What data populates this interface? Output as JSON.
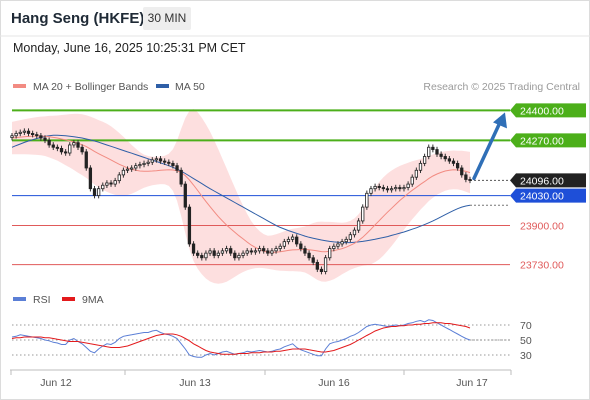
{
  "header": {
    "title": "Hang Seng (HKFE)",
    "timeframe": "30 MIN",
    "datetime": "Monday, June 16, 2025 10:25:31 PM CET"
  },
  "legend": {
    "ma20_label": "MA 20 + Bollinger Bands",
    "ma50_label": "MA 50",
    "ma20_color": "#f28b82",
    "ma50_color": "#2f5fa7",
    "credit": "Research © 2025 Trading Central"
  },
  "rsi_legend": {
    "rsi_label": "RSI",
    "ma9_label": "9MA",
    "rsi_color": "#5b7fd6",
    "ma9_color": "#e31a1c"
  },
  "chart_data": [
    {
      "type": "candlestick",
      "title": "",
      "ylim": [
        23620,
        24480
      ],
      "x_ticks": [
        "Jun 12",
        "Jun 13",
        "Jun 16",
        "Jun 17"
      ],
      "levels": [
        {
          "value": 24400,
          "label": "24400.00",
          "kind": "resistance",
          "color": "#4caf1a"
        },
        {
          "value": 24270,
          "label": "24270.00",
          "kind": "resistance",
          "color": "#4caf1a"
        },
        {
          "value": 24096,
          "label": "24096.00",
          "kind": "last-price",
          "color": "#222222"
        },
        {
          "value": 24030,
          "label": "24030.00",
          "kind": "pivot",
          "color": "#1e4fd8"
        },
        {
          "value": 23900,
          "label": "23900.00",
          "kind": "support",
          "color": "#e05a5a"
        },
        {
          "value": 23730,
          "label": "23730.00",
          "kind": "support",
          "color": "#e05a5a"
        }
      ],
      "closes": [
        24290,
        24300,
        24305,
        24310,
        24300,
        24295,
        24290,
        24280,
        24270,
        24250,
        24240,
        24235,
        24220,
        24215,
        24250,
        24260,
        24240,
        24220,
        24150,
        24060,
        24030,
        24060,
        24075,
        24085,
        24080,
        24095,
        24120,
        24140,
        24145,
        24150,
        24160,
        24165,
        24170,
        24175,
        24185,
        24190,
        24180,
        24175,
        24170,
        24160,
        24140,
        24080,
        23980,
        23820,
        23780,
        23770,
        23760,
        23780,
        23790,
        23770,
        23780,
        23790,
        23800,
        23780,
        23760,
        23770,
        23780,
        23790,
        23785,
        23790,
        23800,
        23790,
        23780,
        23790,
        23800,
        23810,
        23830,
        23840,
        23850,
        23820,
        23800,
        23780,
        23760,
        23740,
        23710,
        23700,
        23760,
        23800,
        23810,
        23820,
        23830,
        23840,
        23860,
        23880,
        23920,
        23980,
        24040,
        24060,
        24070,
        24065,
        24060,
        24055,
        24060,
        24065,
        24060,
        24065,
        24080,
        24110,
        24140,
        24170,
        24200,
        24240,
        24230,
        24210,
        24200,
        24190,
        24180,
        24170,
        24150,
        24120,
        24100,
        24096
      ],
      "ma20": [
        24280,
        24282,
        24284,
        24286,
        24287,
        24288,
        24289,
        24289,
        24288,
        24286,
        24283,
        24280,
        24276,
        24272,
        24268,
        24263,
        24257,
        24251,
        24243,
        24233,
        24222,
        24212,
        24203,
        24194,
        24185,
        24175,
        24166,
        24158,
        24150,
        24144,
        24140,
        24137,
        24136,
        24136,
        24137,
        24138,
        24140,
        24141,
        24142,
        24141,
        24138,
        24130,
        24117,
        24098,
        24076,
        24052,
        24028,
        24005,
        23982,
        23960,
        23939,
        23920,
        23902,
        23886,
        23871,
        23856,
        23842,
        23828,
        23815,
        23805,
        23796,
        23789,
        23784,
        23783,
        23784,
        23786,
        23789,
        23792,
        23794,
        23795,
        23796,
        23796,
        23795,
        23793,
        23790,
        23787,
        23786,
        23788,
        23791,
        23795,
        23800,
        23806,
        23814,
        23823,
        23835,
        23849,
        23866,
        23884,
        23903,
        23921,
        23940,
        23958,
        23975,
        23992,
        24009,
        24024,
        24039,
        24053,
        24066,
        24079,
        24091,
        24104,
        24115,
        24124,
        24131,
        24137,
        24140,
        24142,
        24141,
        24139,
        24135,
        24130
      ],
      "ma50": [
        24240,
        24247,
        24254,
        24261,
        24267,
        24273,
        24278,
        24283,
        24287,
        24290,
        24292,
        24292,
        24291,
        24290,
        24288,
        24286,
        24283,
        24280,
        24276,
        24272,
        24267,
        24262,
        24256,
        24250,
        24244,
        24238,
        24232,
        24226,
        24220,
        24214,
        24208,
        24202,
        24196,
        24190,
        24184,
        24178,
        24172,
        24166,
        24160,
        24153,
        24145,
        24136,
        24126,
        24115,
        24104,
        24093,
        24082,
        24071,
        24060,
        24050,
        24040,
        24030,
        24020,
        24010,
        24000,
        23990,
        23980,
        23970,
        23960,
        23950,
        23940,
        23930,
        23920,
        23910,
        23900,
        23892,
        23885,
        23878,
        23872,
        23866,
        23860,
        23854,
        23849,
        23845,
        23841,
        23837,
        23834,
        23831,
        23829,
        23827,
        23826,
        23826,
        23826,
        23827,
        23829,
        23831,
        23834,
        23837,
        23840,
        23844,
        23848,
        23852,
        23857,
        23862,
        23867,
        23872,
        23878,
        23884,
        23890,
        23897,
        23904,
        23912,
        23920,
        23929,
        23938,
        23947,
        23956,
        23965,
        23973,
        23980,
        23985,
        23988
      ],
      "bb_width": [
        70,
        72,
        74,
        76,
        78,
        80,
        82,
        84,
        86,
        90,
        94,
        98,
        104,
        110,
        116,
        122,
        128,
        132,
        136,
        140,
        144,
        146,
        148,
        148,
        146,
        142,
        136,
        128,
        118,
        106,
        94,
        82,
        72,
        66,
        62,
        60,
        60,
        62,
        70,
        90,
        130,
        190,
        250,
        300,
        330,
        340,
        340,
        335,
        325,
        310,
        292,
        270,
        246,
        220,
        194,
        168,
        144,
        122,
        104,
        90,
        80,
        74,
        72,
        74,
        78,
        82,
        86,
        90,
        92,
        94,
        96,
        100,
        108,
        118,
        126,
        130,
        130,
        128,
        124,
        118,
        112,
        108,
        106,
        108,
        114,
        124,
        138,
        152,
        162,
        168,
        170,
        168,
        164,
        158,
        150,
        142,
        134,
        126,
        118,
        110,
        104,
        98,
        94,
        90,
        88,
        86,
        84,
        84,
        84,
        86,
        88,
        90
      ],
      "forecast_arrow": {
        "from": 24096,
        "to": 24400
      }
    },
    {
      "type": "line",
      "title": "RSI",
      "ylim": [
        18,
        82
      ],
      "y_ticks": [
        "70",
        "50",
        "30"
      ],
      "series": [
        {
          "name": "RSI",
          "values": [
            54,
            55,
            57,
            56,
            55,
            54,
            53,
            52,
            50,
            49,
            47,
            46,
            44,
            44,
            50,
            52,
            48,
            45,
            40,
            35,
            33,
            38,
            42,
            45,
            44,
            47,
            52,
            55,
            56,
            57,
            58,
            59,
            60,
            60,
            62,
            63,
            60,
            58,
            57,
            55,
            52,
            45,
            38,
            30,
            28,
            27,
            27,
            30,
            32,
            30,
            32,
            34,
            35,
            33,
            31,
            32,
            33,
            35,
            34,
            35,
            36,
            35,
            34,
            35,
            37,
            38,
            41,
            43,
            45,
            40,
            37,
            35,
            33,
            31,
            29,
            29,
            38,
            45,
            47,
            48,
            50,
            52,
            55,
            57,
            60,
            64,
            68,
            70,
            71,
            70,
            69,
            68,
            69,
            70,
            69,
            70,
            72,
            73,
            75,
            76,
            74,
            77,
            76,
            73,
            70,
            67,
            64,
            61,
            58,
            55,
            52,
            50
          ]
        },
        {
          "name": "9MA",
          "values": [
            52,
            53,
            53,
            54,
            54,
            54,
            54,
            54,
            53,
            53,
            52,
            51,
            50,
            49,
            48,
            48,
            48,
            47,
            46,
            45,
            44,
            43,
            42,
            41,
            40,
            40,
            40,
            41,
            42,
            44,
            46,
            48,
            50,
            52,
            54,
            56,
            57,
            58,
            58,
            58,
            57,
            55,
            52,
            49,
            45,
            42,
            39,
            36,
            34,
            33,
            32,
            31,
            31,
            31,
            31,
            32,
            32,
            32,
            33,
            33,
            33,
            34,
            34,
            34,
            35,
            35,
            36,
            37,
            38,
            38,
            38,
            38,
            37,
            36,
            35,
            34,
            34,
            35,
            36,
            38,
            40,
            42,
            44,
            47,
            50,
            53,
            56,
            59,
            62,
            64,
            66,
            67,
            68,
            68,
            69,
            69,
            70,
            70,
            71,
            71,
            72,
            72,
            73,
            73,
            73,
            72,
            72,
            71,
            70,
            69,
            68,
            66
          ]
        }
      ]
    }
  ]
}
